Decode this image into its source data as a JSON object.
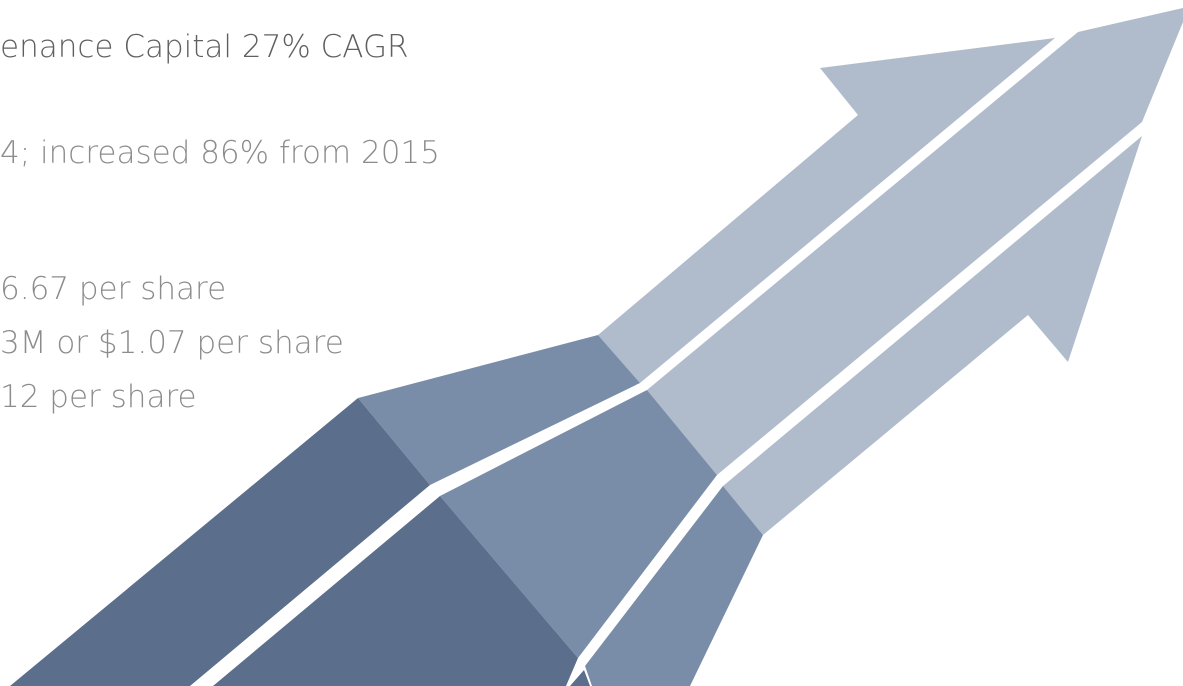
{
  "lines": [
    "enance Capital 27% CAGR",
    "4; increased 86% from 2015",
    "6.67 per share",
    "3M or $1.07 per share",
    "12 per share"
  ]
}
